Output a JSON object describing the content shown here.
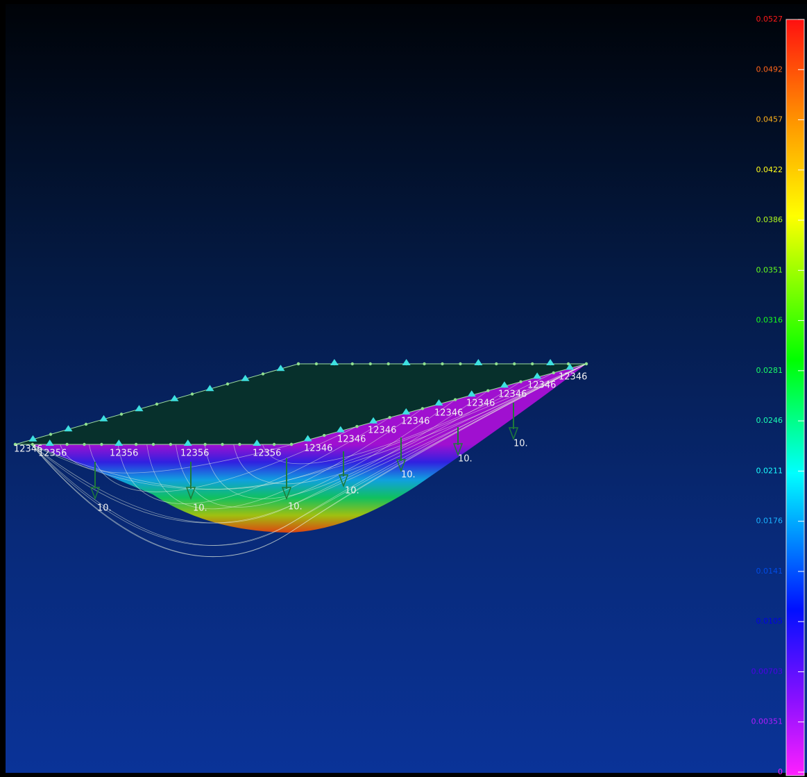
{
  "legend": {
    "labels": [
      "0.0527",
      "0.0492",
      "0.0457",
      "0.0422",
      "0.0386",
      "0.0351",
      "0.0316",
      "0.0281",
      "0.0246",
      "0.0211",
      "0.0176",
      "0.0141",
      "0.0105",
      "0.00703",
      "0.00351",
      "0"
    ]
  },
  "model": {
    "support_labels": [
      "12346",
      "12356",
      "12356",
      "12356",
      "12356",
      "12346",
      "12346",
      "12346",
      "12346",
      "12346",
      "12346",
      "12346",
      "12346",
      "12346"
    ],
    "load_labels": [
      "10.",
      "10.",
      "10.",
      "10.",
      "10.",
      "10.",
      "10."
    ]
  }
}
